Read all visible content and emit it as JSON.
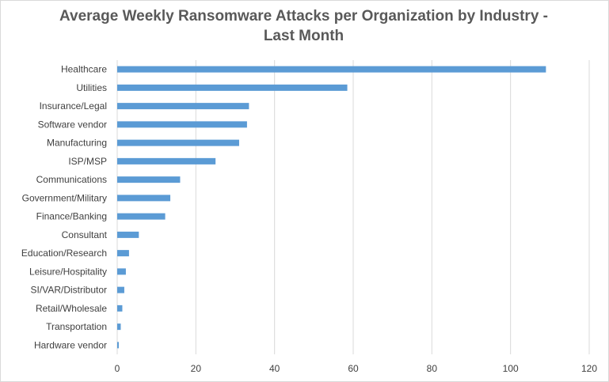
{
  "chart_data": {
    "type": "bar",
    "orientation": "horizontal",
    "title_lines": [
      "Average Weekly Ransomware Attacks per Organization by Industry -",
      "Last Month"
    ],
    "categories": [
      "Healthcare",
      "Utilities",
      "Insurance/Legal",
      "Software vendor",
      "Manufacturing",
      "ISP/MSP",
      "Communications",
      "Government/Military",
      "Finance/Banking",
      "Consultant",
      "Education/Research",
      "Leisure/Hospitality",
      "SI/VAR/Distributor",
      "Retail/Wholesale",
      "Transportation",
      "Hardware vendor"
    ],
    "values": [
      109,
      58.5,
      33.5,
      33,
      31,
      25,
      16,
      13.5,
      12.2,
      5.5,
      3,
      2.2,
      1.8,
      1.3,
      0.9,
      0.4
    ],
    "xlim": [
      0,
      120
    ],
    "xticks": [
      0,
      20,
      40,
      60,
      80,
      100,
      120
    ],
    "grid": true,
    "legend": "none",
    "bar_color": "#5b9bd5"
  }
}
